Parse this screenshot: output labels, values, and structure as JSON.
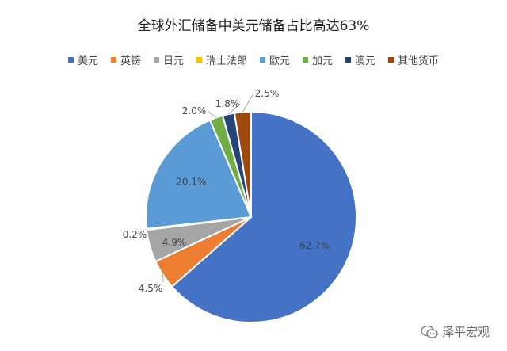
{
  "chart_data": {
    "type": "pie",
    "title": "全球外汇储备中美元储备占比高达63%",
    "legend_position": "top",
    "slices": [
      {
        "name": "美元",
        "value": 62.7,
        "label": "62.7%",
        "color": "#4472c4"
      },
      {
        "name": "英镑",
        "value": 4.5,
        "label": "4.5%",
        "color": "#ed7d31"
      },
      {
        "name": "日元",
        "value": 4.9,
        "label": "4.9%",
        "color": "#a5a5a5"
      },
      {
        "name": "瑞士法郎",
        "value": 0.2,
        "label": "0.2%",
        "color": "#ffc000"
      },
      {
        "name": "欧元",
        "value": 20.1,
        "label": "20.1%",
        "color": "#5b9bd5"
      },
      {
        "name": "加元",
        "value": 2.0,
        "label": "2.0%",
        "color": "#70ad47"
      },
      {
        "name": "澳元",
        "value": 1.8,
        "label": "1.8%",
        "color": "#264478"
      },
      {
        "name": "其他货币",
        "value": 2.5,
        "label": "2.5%",
        "color": "#9e480e"
      }
    ]
  },
  "watermark": {
    "text": "泽平宏观",
    "icon": "wechat-icon"
  }
}
